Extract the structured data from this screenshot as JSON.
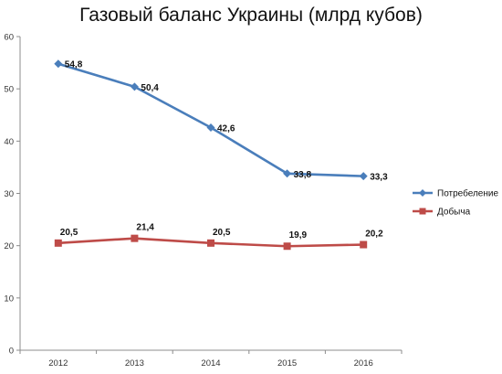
{
  "chart_data": {
    "type": "line",
    "title": "Газовый баланс Украины (млрд кубов)",
    "categories": [
      "2012",
      "2013",
      "2014",
      "2015",
      "2016"
    ],
    "series": [
      {
        "name": "Потребеление",
        "values": [
          54.8,
          50.4,
          42.6,
          33.8,
          33.3
        ],
        "labels": [
          "54,8",
          "50,4",
          "42,6",
          "33,8",
          "33,3"
        ],
        "color": "#4a7ebb",
        "marker": "diamond"
      },
      {
        "name": "Добыча",
        "values": [
          20.5,
          21.4,
          20.5,
          19.9,
          20.2
        ],
        "labels": [
          "20,5",
          "21,4",
          "20,5",
          "19,9",
          "20,2"
        ],
        "color": "#be4b48",
        "marker": "square"
      }
    ],
    "y_ticks": [
      "0",
      "10",
      "20",
      "30",
      "40",
      "50",
      "60"
    ],
    "ylim": [
      0,
      60
    ],
    "xlabel": "",
    "ylabel": "",
    "grid": false,
    "legend_position": "right"
  }
}
